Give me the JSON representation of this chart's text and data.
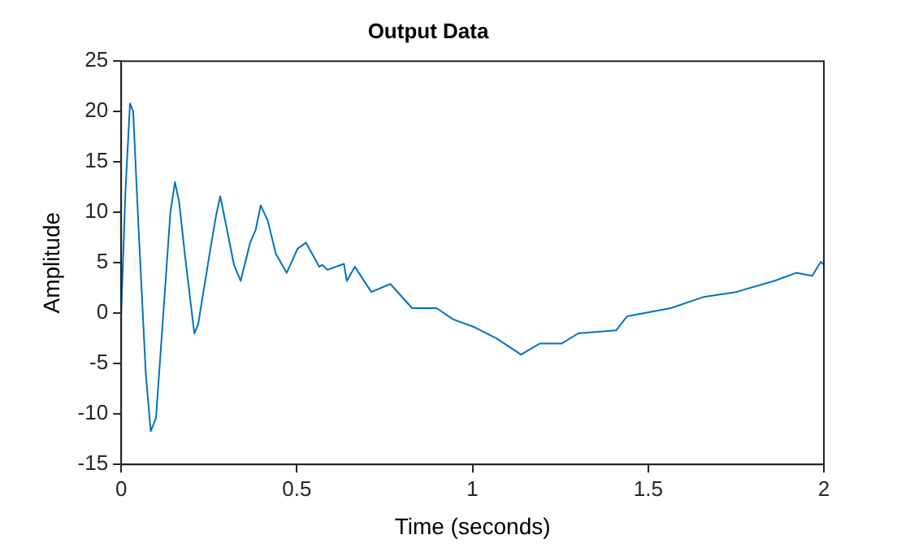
{
  "chart_data": {
    "type": "line",
    "title": "Output Data",
    "xlabel": "Time (seconds)",
    "ylabel": "Amplitude",
    "xlim": [
      0,
      2
    ],
    "xticks": [
      0,
      0.5,
      1,
      1.5,
      2
    ],
    "ylim": [
      -15,
      25
    ],
    "yticks": [
      -15,
      -10,
      -5,
      0,
      5,
      10,
      15,
      20,
      25
    ],
    "grid": false,
    "legend": false,
    "marker": "none",
    "line_style": "solid",
    "series": [
      {
        "color": "#0072bd",
        "x": [
          0,
          0.012,
          0.025,
          0.034,
          0.05,
          0.07,
          0.084,
          0.099,
          0.122,
          0.14,
          0.153,
          0.165,
          0.181,
          0.208,
          0.219,
          0.254,
          0.27,
          0.282,
          0.301,
          0.321,
          0.34,
          0.367,
          0.383,
          0.397,
          0.417,
          0.44,
          0.471,
          0.502,
          0.526,
          0.564,
          0.572,
          0.587,
          0.634,
          0.642,
          0.665,
          0.712,
          0.766,
          0.828,
          0.898,
          0.944,
          1.006,
          1.068,
          1.138,
          1.192,
          1.254,
          1.301,
          1.409,
          1.44,
          1.564,
          1.657,
          1.75,
          1.859,
          1.921,
          1.967,
          1.991,
          2
        ],
        "values": [
          0,
          12,
          20.8,
          20,
          8,
          -6,
          -11.7,
          -10.4,
          1,
          10,
          13,
          11,
          5.9,
          -2,
          -1.1,
          6.4,
          9.7,
          11.6,
          8.3,
          4.8,
          3.2,
          7,
          8.3,
          10.7,
          9.2,
          5.9,
          4,
          6.4,
          7,
          4.6,
          4.8,
          4.3,
          4.9,
          3.2,
          4.6,
          2.1,
          2.9,
          0.5,
          0.5,
          -0.6,
          -1.4,
          -2.5,
          -4.1,
          -3,
          -3,
          -2,
          -1.7,
          -0.3,
          0.5,
          1.6,
          2.1,
          3.2,
          4,
          3.7,
          5.1,
          4.8
        ]
      }
    ]
  }
}
